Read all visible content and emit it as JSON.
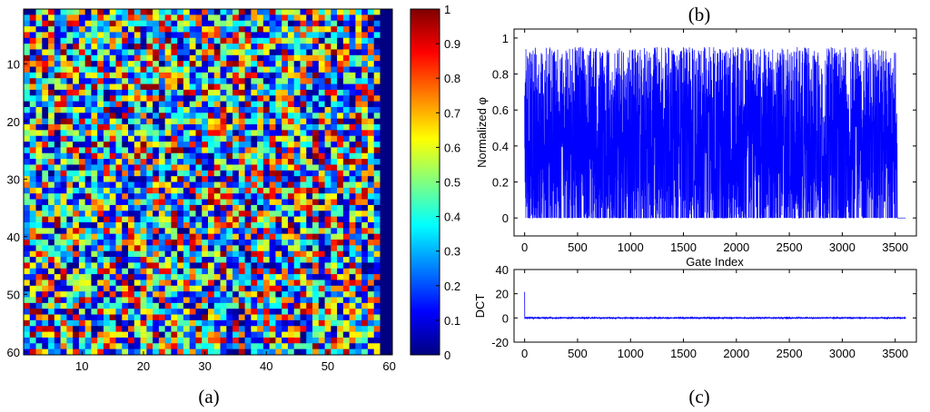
{
  "chart_data": [
    {
      "type": "heatmap",
      "caption": "(a)",
      "rows": 60,
      "cols": 60,
      "value_range": [
        0,
        1
      ],
      "zero_columns_from": 59,
      "x_ticks": [
        10,
        20,
        30,
        40,
        50,
        60
      ],
      "y_ticks": [
        10,
        20,
        30,
        40,
        50,
        60
      ],
      "colormap": "jet",
      "colorbar_ticks": [
        0,
        0.1,
        0.2,
        0.3,
        0.4,
        0.5,
        0.6,
        0.7,
        0.8,
        0.9,
        1
      ],
      "seed": 12345
    },
    {
      "type": "line",
      "caption": "(b)",
      "xlabel": "Gate Index",
      "ylabel": "Normalized φ",
      "xlim": [
        -100,
        3700
      ],
      "ylim": [
        -0.1,
        1.05
      ],
      "x_ticks": [
        0,
        500,
        1000,
        1500,
        2000,
        2500,
        3000,
        3500
      ],
      "y_ticks": [
        0,
        0.2,
        0.4,
        0.6,
        0.8,
        1
      ],
      "n_points": 3600,
      "nonzero_until": 3520,
      "typical_max": 0.95,
      "color": "#0000ff",
      "seed": 777
    },
    {
      "type": "line",
      "caption": "(c)",
      "xlabel": "",
      "ylabel": "DCT",
      "xlim": [
        -100,
        3700
      ],
      "ylim": [
        -20,
        40
      ],
      "x_ticks": [
        0,
        500,
        1000,
        1500,
        2000,
        2500,
        3000,
        3500
      ],
      "y_ticks": [
        -20,
        0,
        20,
        40
      ],
      "n_points": 3600,
      "first_values": [
        21.5,
        2,
        -1,
        0.8
      ],
      "color": "#0000ff",
      "seed": 4242
    }
  ]
}
